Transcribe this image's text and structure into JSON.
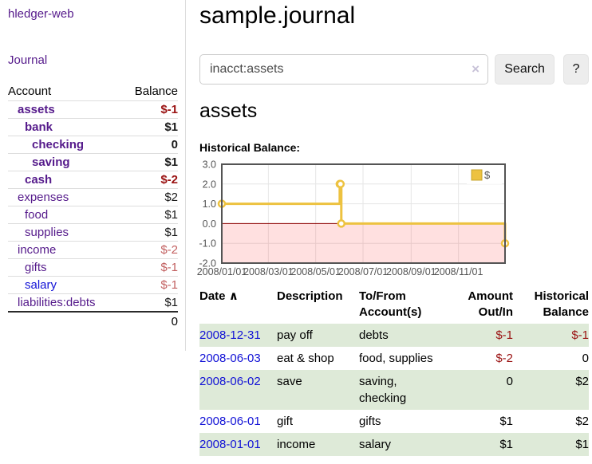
{
  "app": {
    "brand": "hledger-web",
    "nav_journal": "Journal"
  },
  "sidebar": {
    "headers": {
      "account": "Account",
      "balance": "Balance"
    },
    "accounts": [
      {
        "account": "assets",
        "balance": "$-1",
        "depth": 0,
        "bold": true,
        "neg": "strong"
      },
      {
        "account": "bank",
        "balance": "$1",
        "depth": 1,
        "bold": true,
        "neg": ""
      },
      {
        "account": "checking",
        "balance": "0",
        "depth": 2,
        "bold": true,
        "neg": ""
      },
      {
        "account": "saving",
        "balance": "$1",
        "depth": 2,
        "bold": true,
        "neg": ""
      },
      {
        "account": "cash",
        "balance": "$-2",
        "depth": 1,
        "bold": true,
        "neg": "strong"
      },
      {
        "account": "expenses",
        "balance": "$2",
        "depth": 0,
        "bold": false,
        "neg": ""
      },
      {
        "account": "food",
        "balance": "$1",
        "depth": 1,
        "bold": false,
        "neg": ""
      },
      {
        "account": "supplies",
        "balance": "$1",
        "depth": 1,
        "bold": false,
        "neg": ""
      },
      {
        "account": "income",
        "balance": "$-2",
        "depth": 0,
        "bold": false,
        "neg": "soft"
      },
      {
        "account": "gifts",
        "balance": "$-1",
        "depth": 1,
        "bold": false,
        "neg": "soft"
      },
      {
        "account": "salary",
        "balance": "$-1",
        "depth": 1,
        "bold": false,
        "neg": "soft",
        "blue": true
      },
      {
        "account": "liabilities:debts",
        "balance": "$1",
        "depth": 0,
        "bold": false,
        "neg": ""
      }
    ],
    "total": "0"
  },
  "main": {
    "title": "sample.journal",
    "search": {
      "value": "inacct:assets",
      "clear_icon": "×",
      "button_label": "Search",
      "help_label": "?"
    },
    "account_heading": "assets",
    "section_label": "Historical Balance:"
  },
  "chart_data": {
    "type": "line",
    "title": "Historical Balance:",
    "step": "after",
    "series": [
      {
        "name": "$",
        "color": "#edc240",
        "points": [
          [
            "2008-01-01",
            1
          ],
          [
            "2008-06-01",
            2
          ],
          [
            "2008-06-02",
            2
          ],
          [
            "2008-06-03",
            0
          ],
          [
            "2008-12-31",
            -1
          ]
        ]
      }
    ],
    "xlim": [
      "2008-01-01",
      "2008-12-31"
    ],
    "ylim": [
      -2,
      3
    ],
    "yticks": [
      3.0,
      2.0,
      1.0,
      0.0,
      -1.0,
      -2.0
    ],
    "xticks": [
      [
        "2008-01-01",
        "2008/01/01"
      ],
      [
        "2008-03-01",
        "2008/03/01"
      ],
      [
        "2008-05-01",
        "2008/05/01"
      ],
      [
        "2008-07-01",
        "2008/07/01"
      ],
      [
        "2008-09-01",
        "2008/09/01"
      ],
      [
        "2008-11-01",
        "2008/11/01"
      ]
    ],
    "legend_position": "top-right",
    "legend_label": "$",
    "zero_line_color": "#8b0000",
    "negative_region_fill": "rgba(255,0,0,0.12)",
    "grid": true
  },
  "register": {
    "sort_indicator": "∧",
    "headers": [
      "Date",
      "Description",
      "To/From Account(s)",
      "Amount Out/In",
      "Historical Balance"
    ],
    "rows": [
      {
        "date": "2008-12-31",
        "description": "pay off",
        "accounts": "debts",
        "amount": "$-1",
        "balance": "$-1",
        "amount_neg": true,
        "balance_neg": true
      },
      {
        "date": "2008-06-03",
        "description": "eat & shop",
        "accounts": "food, supplies",
        "amount": "$-2",
        "balance": "0",
        "amount_neg": true,
        "balance_neg": false
      },
      {
        "date": "2008-06-02",
        "description": "save",
        "accounts": "saving, checking",
        "amount": "0",
        "balance": "$2",
        "amount_neg": false,
        "balance_neg": false
      },
      {
        "date": "2008-06-01",
        "description": "gift",
        "accounts": "gifts",
        "amount": "$1",
        "balance": "$2",
        "amount_neg": false,
        "balance_neg": false
      },
      {
        "date": "2008-01-01",
        "description": "income",
        "accounts": "salary",
        "amount": "$1",
        "balance": "$1",
        "amount_neg": false,
        "balance_neg": false
      }
    ]
  }
}
